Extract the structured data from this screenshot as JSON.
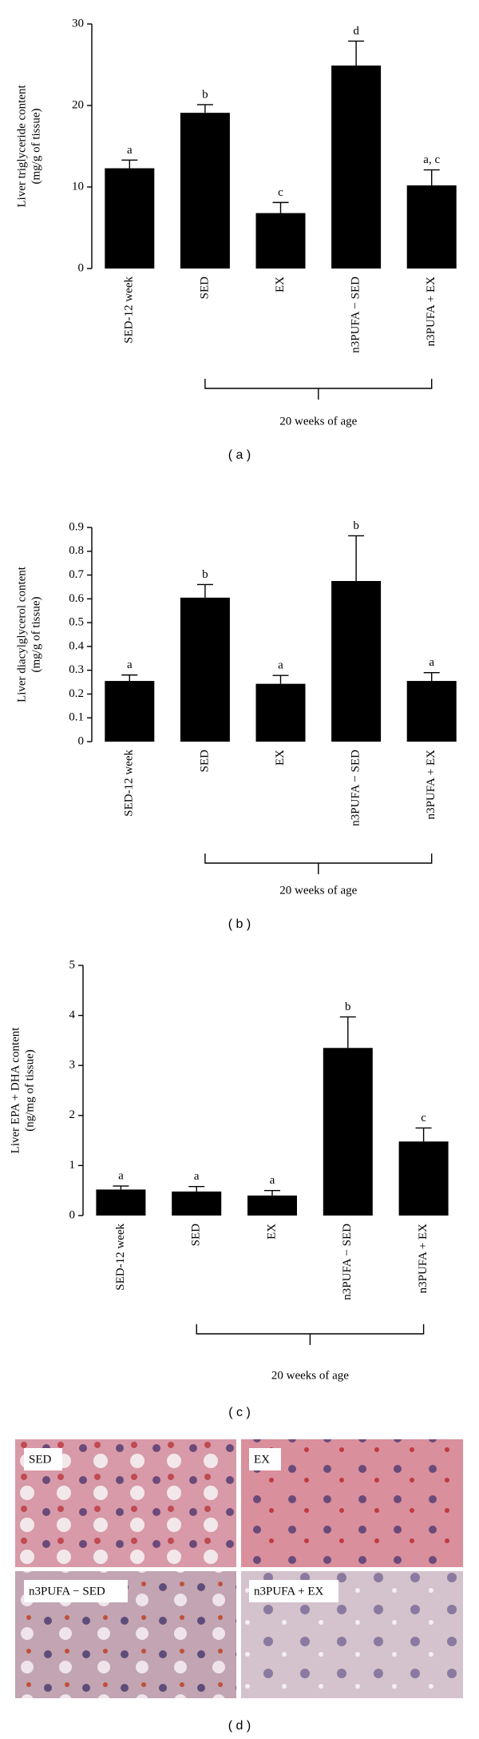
{
  "chart_data": [
    {
      "type": "bar",
      "ylabel": [
        "Liver triglyceride content",
        "(mg/g of tissue)"
      ],
      "categories": [
        "SED-12 week",
        "SED",
        "EX",
        "n3PUFA − SED",
        "n3PUFA + EX"
      ],
      "values": [
        12.3,
        19.1,
        6.8,
        24.9,
        10.2
      ],
      "errors": [
        1.0,
        1.0,
        1.3,
        3.0,
        1.9
      ],
      "annotations": [
        "a",
        "b",
        "c",
        "d",
        "a, c"
      ],
      "color": "#000000",
      "ylim": [
        0,
        30
      ],
      "yticks": [
        0,
        10,
        20,
        30
      ],
      "group_label": "20 weeks of age",
      "caption": "( a )"
    },
    {
      "type": "bar",
      "ylabel": [
        "Liver diacylglycerol content",
        "(mg/g of tissue)"
      ],
      "categories": [
        "SED-12 week",
        "SED",
        "EX",
        "n3PUFA − SED",
        "n3PUFA + EX"
      ],
      "values": [
        0.255,
        0.605,
        0.243,
        0.675,
        0.255
      ],
      "errors": [
        0.025,
        0.055,
        0.035,
        0.19,
        0.035
      ],
      "annotations": [
        "a",
        "b",
        "a",
        "b",
        "a"
      ],
      "color": "#000000",
      "ylim": [
        0,
        0.9
      ],
      "yticks": [
        0,
        0.1,
        0.2,
        0.3,
        0.4,
        0.5,
        0.6,
        0.7,
        0.8,
        0.9
      ],
      "group_label": "20 weeks of age",
      "caption": "( b )"
    },
    {
      "type": "bar",
      "ylabel": [
        "Liver EPA + DHA content",
        "(ng/mg of tissue)"
      ],
      "categories": [
        "SED-12 week",
        "SED",
        "EX",
        "n3PUFA − SED",
        "n3PUFA + EX"
      ],
      "values": [
        0.52,
        0.48,
        0.4,
        3.35,
        1.48
      ],
      "errors": [
        0.07,
        0.1,
        0.1,
        0.62,
        0.27
      ],
      "annotations": [
        "a",
        "a",
        "a",
        "b",
        "c"
      ],
      "color": "#000000",
      "ylim": [
        0,
        5
      ],
      "yticks": [
        0,
        1,
        2,
        3,
        4,
        5
      ],
      "group_label": "20 weeks of age",
      "caption": "( c )"
    }
  ],
  "panel_d": {
    "images": [
      {
        "label": "SED"
      },
      {
        "label": "EX"
      },
      {
        "label": "n3PUFA − SED"
      },
      {
        "label": "n3PUFA + EX"
      }
    ],
    "caption": "( d )"
  }
}
